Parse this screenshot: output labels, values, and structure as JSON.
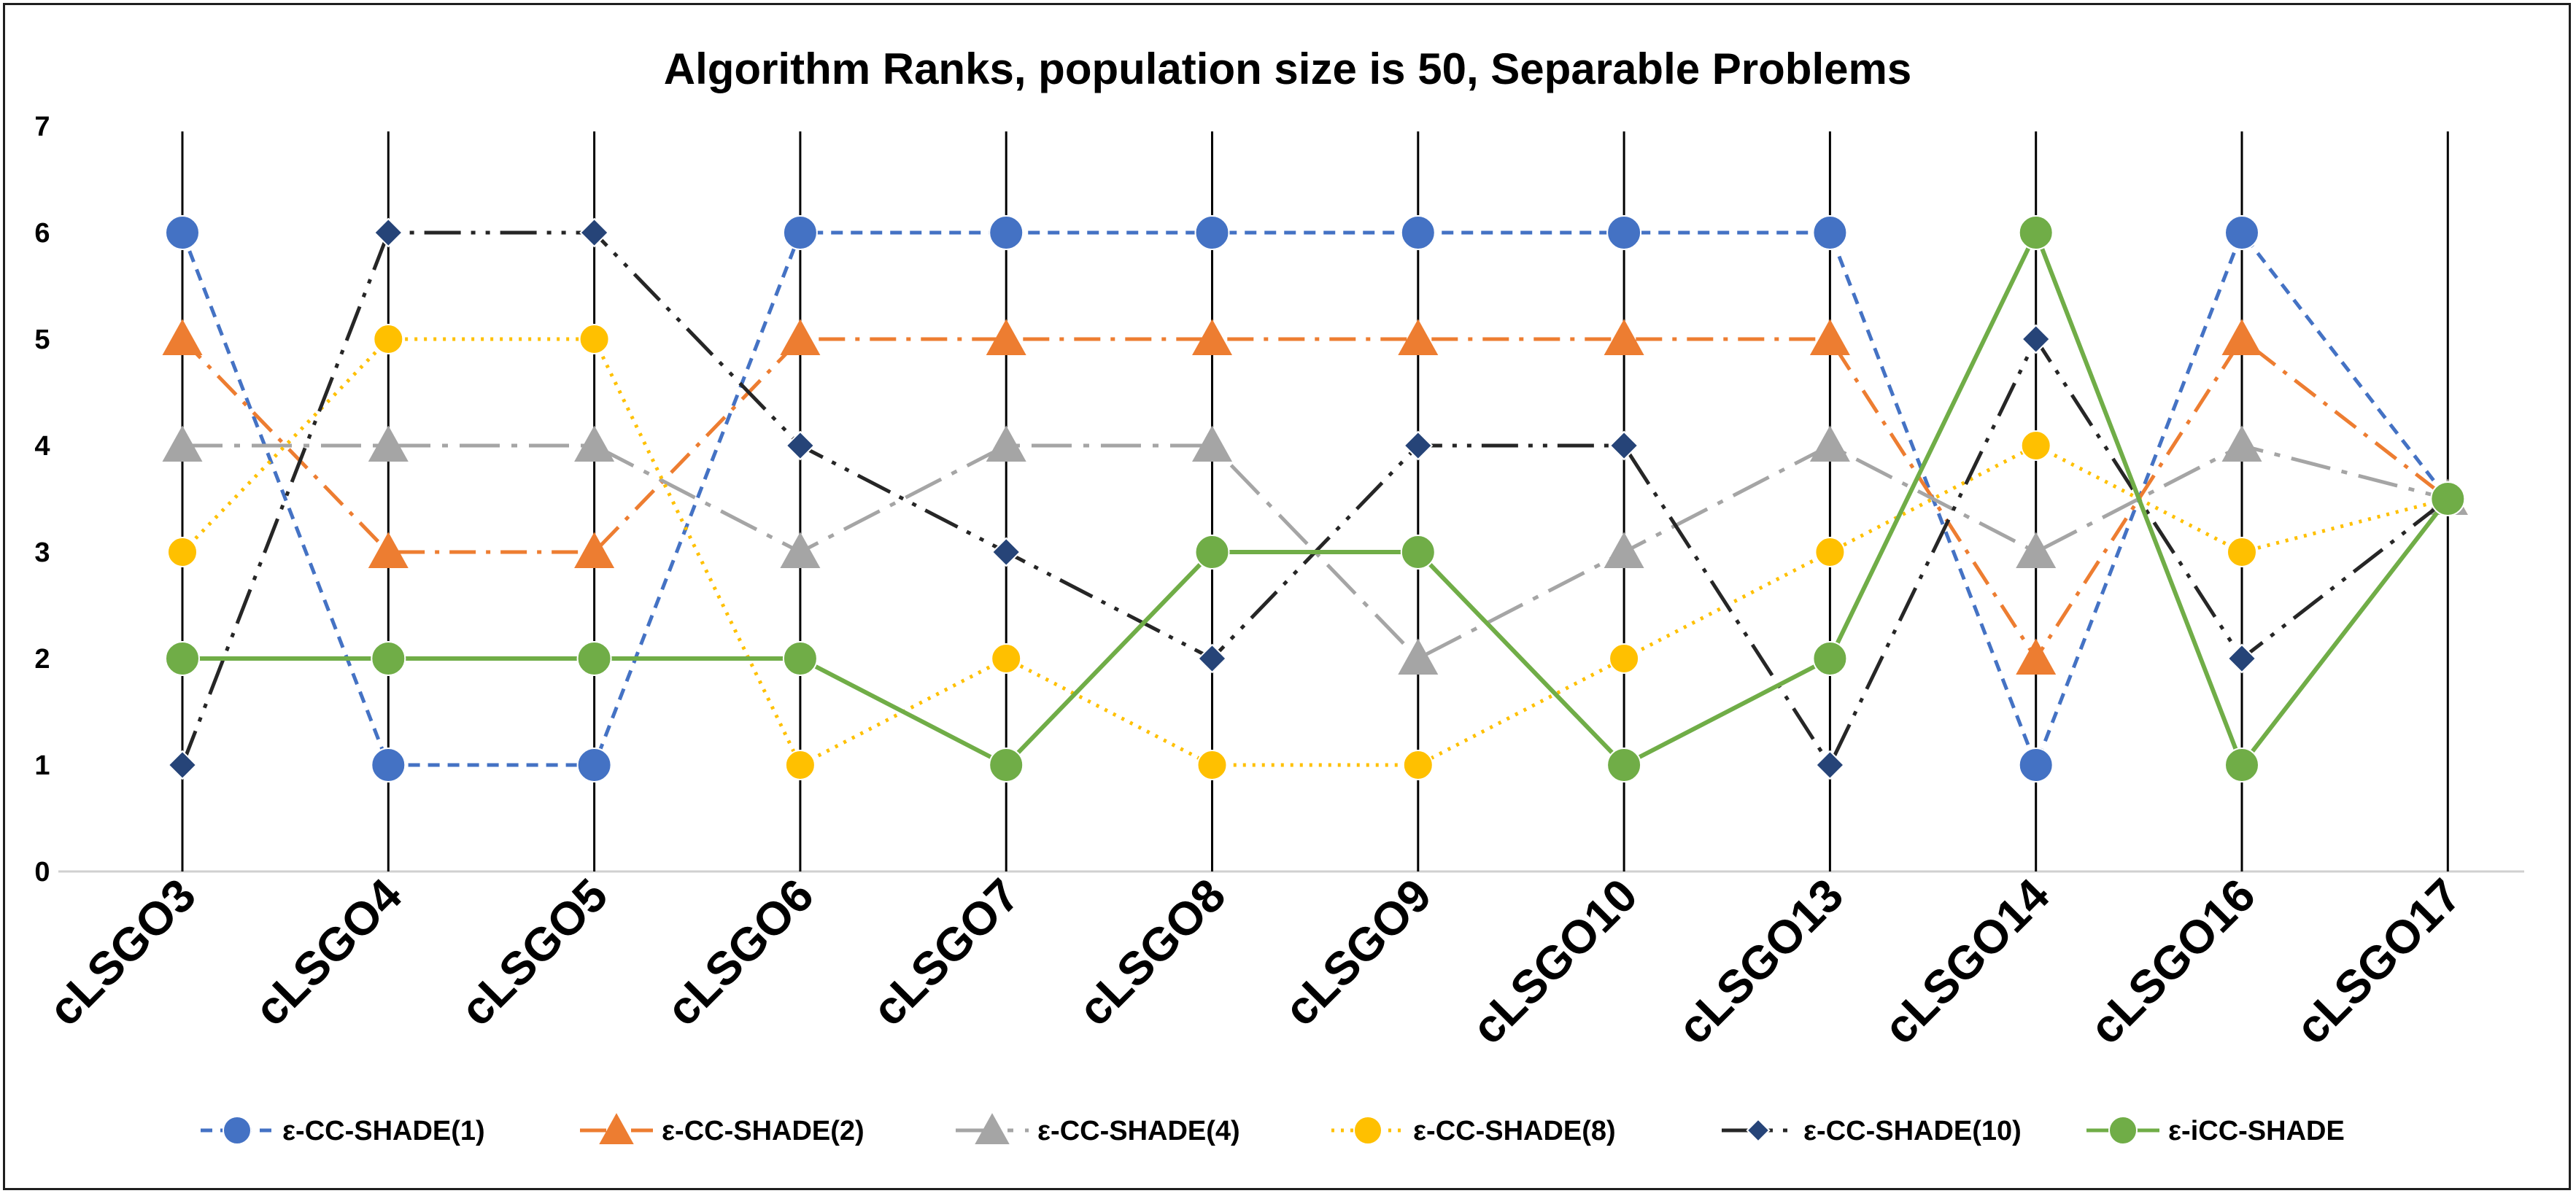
{
  "chart_data": {
    "type": "line",
    "title": "Algorithm Ranks, population size is 50, Separable Problems",
    "xlabel": "",
    "ylabel": "",
    "ylim": [
      0,
      7
    ],
    "yticks": [
      0,
      1,
      2,
      3,
      4,
      5,
      6,
      7
    ],
    "grid": "vertical drop lines at each category",
    "legend_position": "bottom",
    "categories": [
      "cLSGO3",
      "cLSGO4",
      "cLSGO5",
      "cLSGO6",
      "cLSGO7",
      "cLSGO8",
      "cLSGO9",
      "cLSGO10",
      "cLSGO13",
      "cLSGO14",
      "cLSGO16",
      "cLSGO17"
    ],
    "series": [
      {
        "name": "ε-CC-SHADE(1)",
        "color": "#4472C4",
        "marker": "circle",
        "dash": "short-dash",
        "values": [
          6,
          1,
          1,
          6,
          6,
          6,
          6,
          6,
          6,
          1,
          6,
          3.5
        ]
      },
      {
        "name": "ε-CC-SHADE(2)",
        "color": "#ED7D31",
        "marker": "triangle",
        "dash": "dash-dot",
        "values": [
          5,
          3,
          3,
          5,
          5,
          5,
          5,
          5,
          5,
          2,
          5,
          3.5
        ]
      },
      {
        "name": "ε-CC-SHADE(4)",
        "color": "#A5A5A5",
        "marker": "triangle",
        "dash": "long-dash-dot",
        "values": [
          4,
          4,
          4,
          3,
          4,
          4,
          2,
          3,
          4,
          3,
          4,
          3.5
        ]
      },
      {
        "name": "ε-CC-SHADE(8)",
        "color": "#FFC000",
        "marker": "circle",
        "dash": "dotted",
        "values": [
          3,
          5,
          5,
          1,
          2,
          1,
          1,
          2,
          3,
          4,
          3,
          3.5
        ]
      },
      {
        "name": "ε-CC-SHADE(10)",
        "color": "#264478",
        "line_color": "#262626",
        "marker": "diamond",
        "dash": "long-dash-dot-dot",
        "values": [
          1,
          6,
          6,
          4,
          3,
          2,
          4,
          4,
          1,
          5,
          2,
          3.5
        ]
      },
      {
        "name": "ε-iCC-SHADE",
        "color": "#70AD47",
        "marker": "circle",
        "dash": "solid",
        "values": [
          2,
          2,
          2,
          2,
          1,
          3,
          3,
          1,
          2,
          6,
          1,
          3.5
        ]
      }
    ]
  }
}
